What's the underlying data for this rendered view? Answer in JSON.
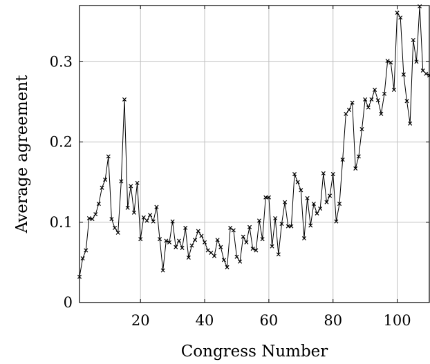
{
  "chart_data": {
    "type": "line",
    "title": "",
    "xlabel": "Congress Number",
    "ylabel": "Average agreement",
    "xlim": [
      1,
      110
    ],
    "ylim": [
      0,
      0.37
    ],
    "xticks": [
      20,
      40,
      60,
      80,
      100
    ],
    "yticks": [
      0,
      0.1,
      0.2,
      0.3
    ],
    "ytick_labels": [
      "0",
      "0.1",
      "0.2",
      "0.3"
    ],
    "grid": true,
    "legend": "none",
    "series": [
      {
        "marker": "x",
        "color": "#000000",
        "x": [
          1,
          2,
          3,
          4,
          5,
          6,
          7,
          8,
          9,
          10,
          11,
          12,
          13,
          14,
          15,
          16,
          17,
          18,
          19,
          20,
          21,
          22,
          23,
          24,
          25,
          26,
          27,
          28,
          29,
          30,
          31,
          32,
          33,
          34,
          35,
          36,
          37,
          38,
          39,
          40,
          41,
          42,
          43,
          44,
          45,
          46,
          47,
          48,
          49,
          50,
          51,
          52,
          53,
          54,
          55,
          56,
          57,
          58,
          59,
          60,
          61,
          62,
          63,
          64,
          65,
          66,
          67,
          68,
          69,
          70,
          71,
          72,
          73,
          74,
          75,
          76,
          77,
          78,
          79,
          80,
          81,
          82,
          83,
          84,
          85,
          86,
          87,
          88,
          89,
          90,
          91,
          92,
          93,
          94,
          95,
          96,
          97,
          98,
          99,
          100,
          101,
          102,
          103,
          104,
          105,
          106,
          107,
          108,
          109,
          110
        ],
        "values": [
          0.032,
          0.055,
          0.065,
          0.105,
          0.104,
          0.11,
          0.123,
          0.143,
          0.153,
          0.182,
          0.104,
          0.093,
          0.087,
          0.151,
          0.253,
          0.118,
          0.145,
          0.112,
          0.149,
          0.079,
          0.106,
          0.102,
          0.109,
          0.101,
          0.119,
          0.079,
          0.04,
          0.077,
          0.075,
          0.101,
          0.069,
          0.077,
          0.068,
          0.093,
          0.056,
          0.071,
          0.078,
          0.089,
          0.083,
          0.075,
          0.065,
          0.062,
          0.058,
          0.078,
          0.069,
          0.053,
          0.044,
          0.093,
          0.09,
          0.057,
          0.051,
          0.082,
          0.075,
          0.094,
          0.067,
          0.065,
          0.102,
          0.079,
          0.131,
          0.131,
          0.07,
          0.105,
          0.06,
          0.098,
          0.125,
          0.095,
          0.095,
          0.16,
          0.15,
          0.14,
          0.08,
          0.13,
          0.096,
          0.123,
          0.111,
          0.117,
          0.161,
          0.125,
          0.133,
          0.16,
          0.101,
          0.123,
          0.178,
          0.235,
          0.24,
          0.249,
          0.167,
          0.182,
          0.216,
          0.253,
          0.243,
          0.253,
          0.265,
          0.252,
          0.235,
          0.26,
          0.301,
          0.299,
          0.265,
          0.361,
          0.355,
          0.284,
          0.251,
          0.223,
          0.327,
          0.3,
          0.369,
          0.289,
          0.285,
          0.283
        ]
      }
    ]
  }
}
